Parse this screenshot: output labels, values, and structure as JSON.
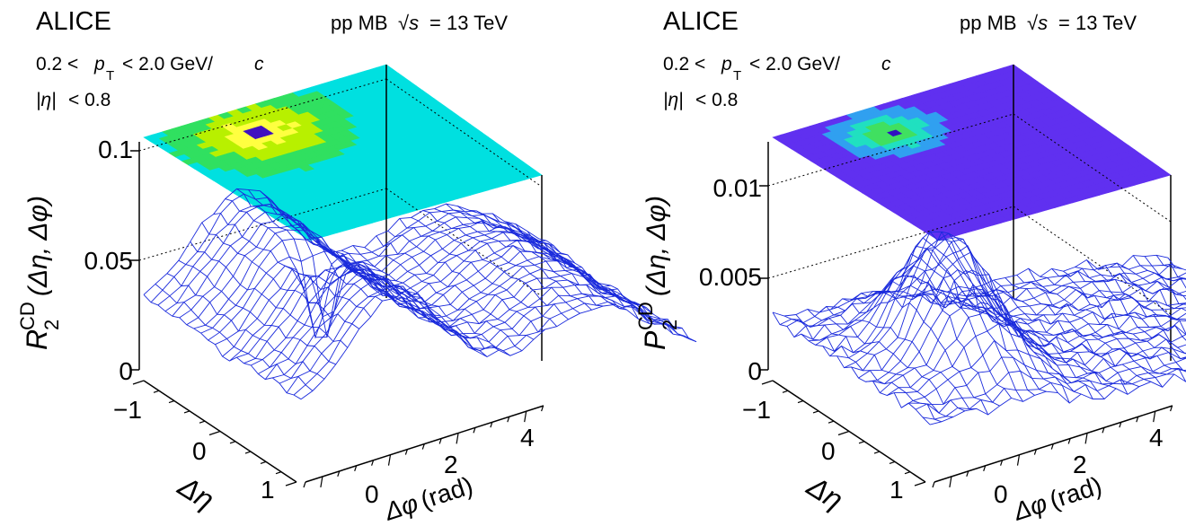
{
  "chart_data": [
    {
      "type": "surface",
      "experiment": "ALICE",
      "system_label": "pp MB",
      "sqrt_s_symbol": "√s",
      "energy_text": "= 13 TeV",
      "pt_cut": {
        "low": "0.2 <",
        "sym": "p",
        "sub": "T",
        "high": "< 2.0 GeV/",
        "unit": "c"
      },
      "eta_cut": {
        "sym": "|η|",
        "rest": "< 0.8"
      },
      "zlabel": {
        "main": "R",
        "sub": "2",
        "sup": "CD",
        "args": "(Δη, Δφ)"
      },
      "xlabel": {
        "sym": "Δφ",
        "unit": "(rad)"
      },
      "ylabel": "Δη",
      "z_ticks": [
        "0",
        "0.05",
        "0.1"
      ],
      "z_range": [
        0,
        0.1
      ],
      "x_ticks": [
        "0",
        "2",
        "4"
      ],
      "x_range": [
        -1.57,
        4.71
      ],
      "y_ticks": [
        "−1",
        "0",
        "1"
      ],
      "y_range": [
        -1.6,
        1.6
      ],
      "surface": {
        "peak_location": {
          "dphi": 0,
          "deta": 0,
          "value": 0.003
        },
        "near_side_ridge_max": 0.062,
        "away_side_max": 0.047,
        "baseline": 0.02
      },
      "color_map": "rainbow"
    },
    {
      "type": "surface",
      "experiment": "ALICE",
      "system_label": "pp MB",
      "sqrt_s_symbol": "√s",
      "energy_text": "= 13 TeV",
      "pt_cut": {
        "low": "0.2 <",
        "sym": "p",
        "sub": "T",
        "high": "< 2.0 GeV/",
        "unit": "c"
      },
      "eta_cut": {
        "sym": "|η|",
        "rest": "< 0.8"
      },
      "zlabel": {
        "main": "P",
        "sub": "2",
        "sup": "CD",
        "args": "(Δη, Δφ)"
      },
      "xlabel": {
        "sym": "Δφ",
        "unit": "(rad)"
      },
      "ylabel": "Δη",
      "z_ticks": [
        "0",
        "0.005",
        "0.01"
      ],
      "z_range": [
        0,
        0.012
      ],
      "x_ticks": [
        "0",
        "2",
        "4"
      ],
      "x_range": [
        -1.57,
        4.71
      ],
      "y_ticks": [
        "−1",
        "0",
        "1"
      ],
      "y_range": [
        -1.6,
        1.6
      ],
      "surface": {
        "peak_location": {
          "dphi": 0,
          "deta": 0,
          "value": 0.0082
        },
        "near_side_ridge_max": 0.0082,
        "away_side_max": 0.0012,
        "baseline": 0.0004
      },
      "color_map": "violet-to-green"
    }
  ]
}
